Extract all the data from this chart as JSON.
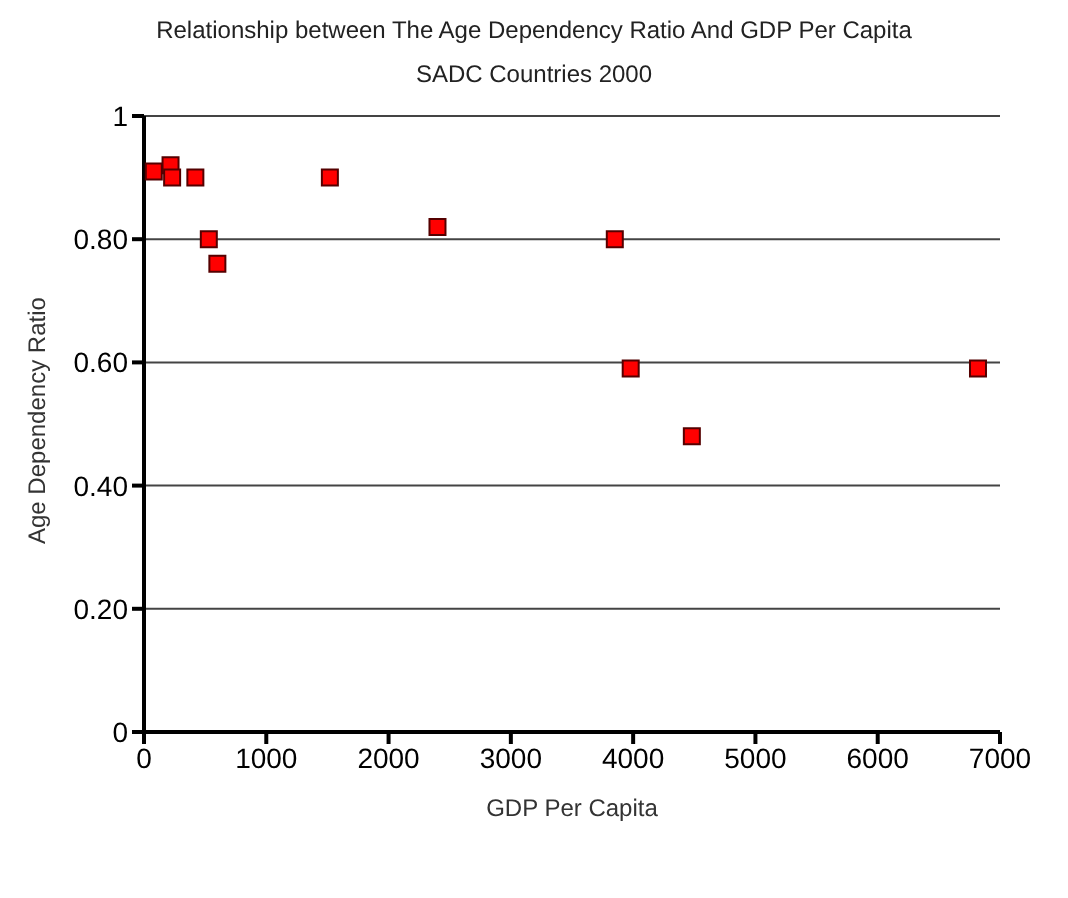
{
  "chart_data": {
    "type": "scatter",
    "title": "Relationship between The Age Dependency Ratio And GDP Per Capita",
    "subtitle": "SADC Countries 2000",
    "xlabel": "GDP Per Capita",
    "ylabel": "Age Dependency Ratio",
    "x": [
      80,
      217,
      230,
      420,
      530,
      600,
      1520,
      2400,
      3850,
      3980,
      4480,
      6820
    ],
    "series": [
      {
        "color": "#ff0000",
        "values": [
          0.91,
          0.92,
          0.9,
          0.9,
          0.8,
          0.76,
          0.9,
          0.82,
          0.8,
          0.59,
          0.48,
          0.59
        ]
      }
    ],
    "xlim": [
      0,
      7000
    ],
    "xticks": [
      0,
      1000,
      2000,
      3000,
      4000,
      5000,
      6000,
      7000
    ],
    "ylim": [
      0,
      1
    ],
    "yticks": [
      0,
      {
        "value": 0.2,
        "label": "0.20"
      },
      {
        "value": 0.4,
        "label": "0.40"
      },
      {
        "value": 0.6,
        "label": "0.60"
      },
      {
        "value": 0.8,
        "label": "0.80"
      },
      1
    ],
    "grid": "y",
    "marker": "square",
    "legend": false
  }
}
